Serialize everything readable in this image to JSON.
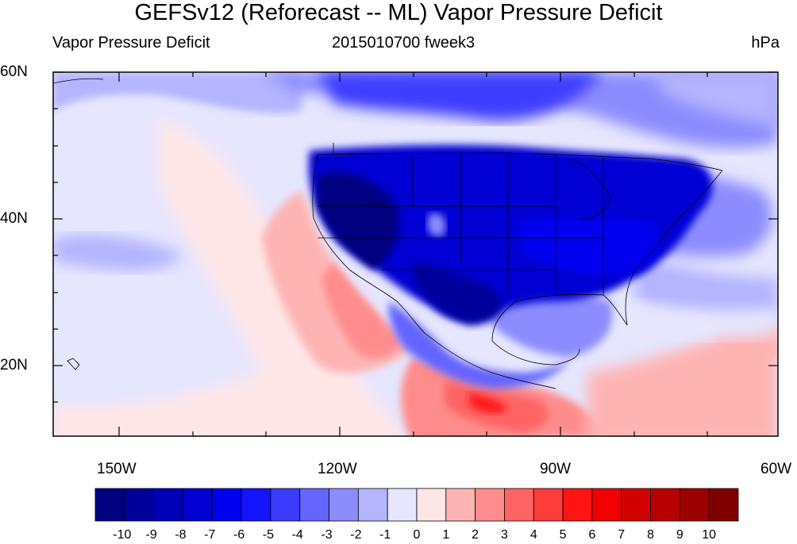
{
  "title": "GEFSv12 (Reforecast -- ML) Vapor Pressure Deficit",
  "subtitle_left": "Vapor Pressure Deficit",
  "subtitle_center": "2015010700 fweek3",
  "subtitle_right": "hPa",
  "map": {
    "projection": "lat-lon",
    "lon_range": [
      -160,
      -60
    ],
    "lat_range": [
      10,
      60
    ],
    "lat_tick_labels": [
      "60N",
      "40N",
      "20N"
    ],
    "lon_tick_labels": [
      "150W",
      "120W",
      "90W",
      "60W"
    ]
  },
  "colorbar": {
    "labels": [
      "-10",
      "-9",
      "-8",
      "-7",
      "-6",
      "-5",
      "-4",
      "-3",
      "-2",
      "-1",
      "0",
      "1",
      "2",
      "3",
      "4",
      "5",
      "6",
      "7",
      "8",
      "9",
      "10"
    ],
    "colors": [
      "#000080",
      "#00009c",
      "#0000b8",
      "#0000d4",
      "#0000f0",
      "#1414ff",
      "#3c3cff",
      "#6464ff",
      "#8c8cff",
      "#b4b4ff",
      "#e6e6ff",
      "#ffe6e6",
      "#ffb4b4",
      "#ff8c8c",
      "#ff6464",
      "#ff3c3c",
      "#ff1414",
      "#f00000",
      "#d40000",
      "#b80000",
      "#9c0000",
      "#800000"
    ]
  }
}
